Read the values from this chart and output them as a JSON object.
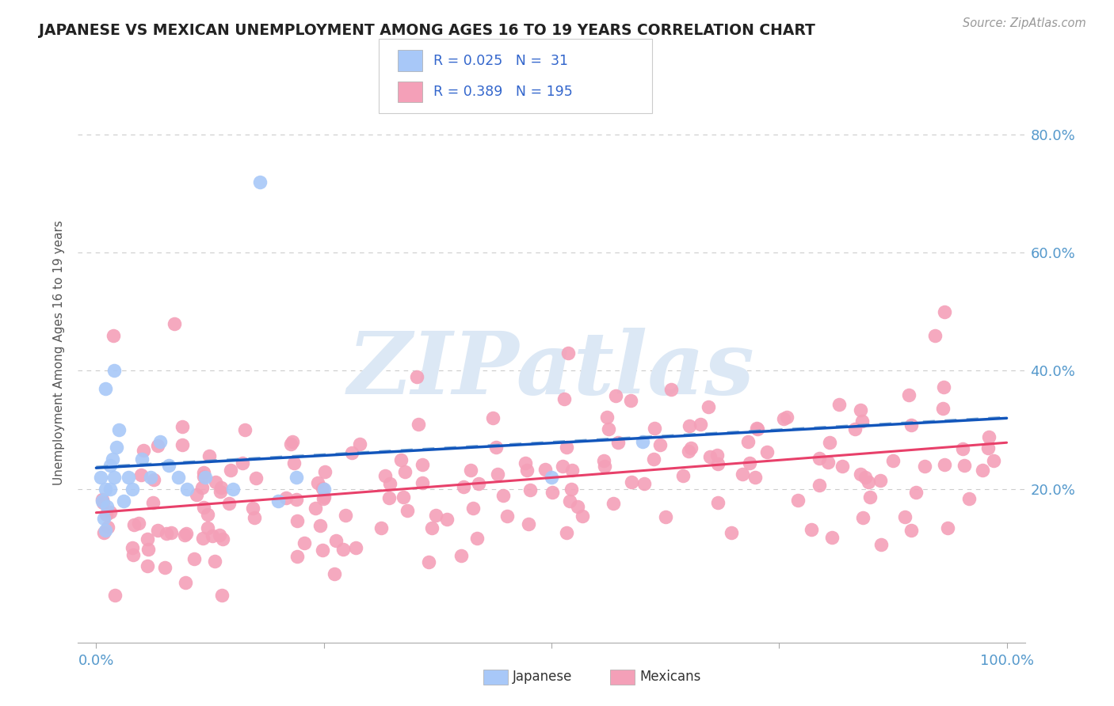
{
  "title": "JAPANESE VS MEXICAN UNEMPLOYMENT AMONG AGES 16 TO 19 YEARS CORRELATION CHART",
  "source_text": "Source: ZipAtlas.com",
  "ylabel": "Unemployment Among Ages 16 to 19 years",
  "xlim": [
    -0.02,
    1.02
  ],
  "ylim": [
    -0.06,
    0.92
  ],
  "xtick_positions": [
    0.0,
    0.25,
    0.5,
    0.75,
    1.0
  ],
  "xtick_labels": [
    "0.0%",
    "",
    "",
    "",
    "100.0%"
  ],
  "ytick_values": [
    0.2,
    0.4,
    0.6,
    0.8
  ],
  "ytick_labels": [
    "20.0%",
    "40.0%",
    "60.0%",
    "80.0%"
  ],
  "R_japanese": 0.025,
  "N_japanese": 31,
  "R_mexican": 0.389,
  "N_mexican": 195,
  "japanese_color": "#a8c8f8",
  "mexican_color": "#f4a0b8",
  "japanese_line_color": "#1155bb",
  "mexican_line_color": "#e8406a",
  "japanese_dashed_color": "#6699cc",
  "background_color": "#ffffff",
  "watermark_color": "#dce8f5",
  "legend_text_color": "#3366cc",
  "title_color": "#222222",
  "axis_label_color": "#555555",
  "tick_color": "#5599cc",
  "grid_color": "#cccccc",
  "source_color": "#999999"
}
